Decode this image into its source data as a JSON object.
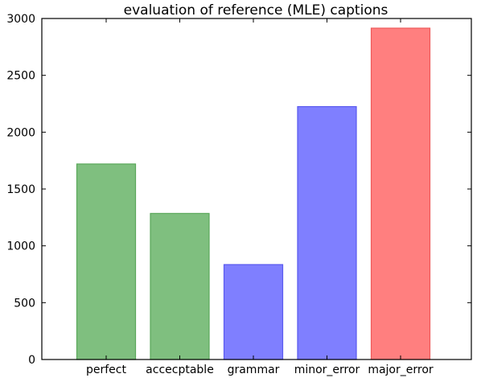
{
  "chart_data": {
    "type": "bar",
    "title": "evaluation of reference (MLE) captions",
    "xlabel": "",
    "ylabel": "",
    "categories": [
      "perfect",
      "accecptable",
      "grammar",
      "minor_error",
      "major_error"
    ],
    "values": [
      1720,
      1285,
      835,
      2225,
      2915
    ],
    "bar_colors": [
      "#7fbf7f",
      "#7fbf7f",
      "#7f7fff",
      "#7f7fff",
      "#ff7f7f"
    ],
    "edge_colors": [
      "#5aa85a",
      "#5aa85a",
      "#5a5aee",
      "#5a5aee",
      "#ee5a5a"
    ],
    "ylim": [
      0,
      3000
    ],
    "yticks": [
      0,
      500,
      1000,
      1500,
      2000,
      2500,
      3000
    ],
    "grid": false,
    "legend": "none"
  }
}
